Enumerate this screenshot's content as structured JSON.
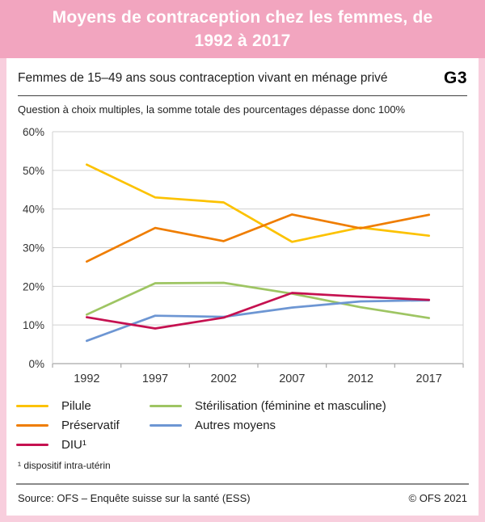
{
  "header": {
    "title": "Moyens de contraception chez les femmes, de 1992 à 2017",
    "banner_color": "#F2A5BF",
    "border_color": "#F8CEDD"
  },
  "card": {
    "subtitle": "Femmes de 15–49 ans sous contraception vivant en ménage privé",
    "graph_id": "G3",
    "note": "Question à choix multiples, la somme totale des pourcentages dépasse donc 100%",
    "footnote": "¹ dispositif intra-utérin",
    "source": "Source: OFS – Enquête suisse sur la santé (ESS)",
    "copyright": "© OFS 2021"
  },
  "chart_data": {
    "type": "line",
    "categories": [
      "1992",
      "1997",
      "2002",
      "2007",
      "2012",
      "2017"
    ],
    "series": [
      {
        "name": "Pilule",
        "color": "#FCC200",
        "values": [
          51.5,
          43.0,
          41.7,
          31.5,
          35.2,
          33.1
        ]
      },
      {
        "name": "Préservatif",
        "color": "#EF7D00",
        "values": [
          26.4,
          35.1,
          31.7,
          38.6,
          35.0,
          38.5
        ]
      },
      {
        "name": "DIU¹",
        "color": "#C51150",
        "values": [
          12.0,
          9.1,
          11.9,
          18.3,
          17.3,
          16.5
        ]
      },
      {
        "name": "Stérilisation (féminine et masculine)",
        "color": "#9EC563",
        "values": [
          12.7,
          20.8,
          20.9,
          18.1,
          14.6,
          11.8
        ]
      },
      {
        "name": "Autres moyens",
        "color": "#6D96D3",
        "values": [
          5.9,
          12.4,
          12.1,
          14.5,
          16.1,
          16.4
        ]
      }
    ],
    "ylim": [
      0,
      60
    ],
    "ytick_step": 10,
    "ytick_suffix": "%",
    "xlabel": "",
    "ylabel": "",
    "grid": true,
    "legend_position": "bottom",
    "grid_color": "#d0d0d0",
    "axis_color": "#a8a8a8",
    "tick_label_color": "#333333"
  }
}
